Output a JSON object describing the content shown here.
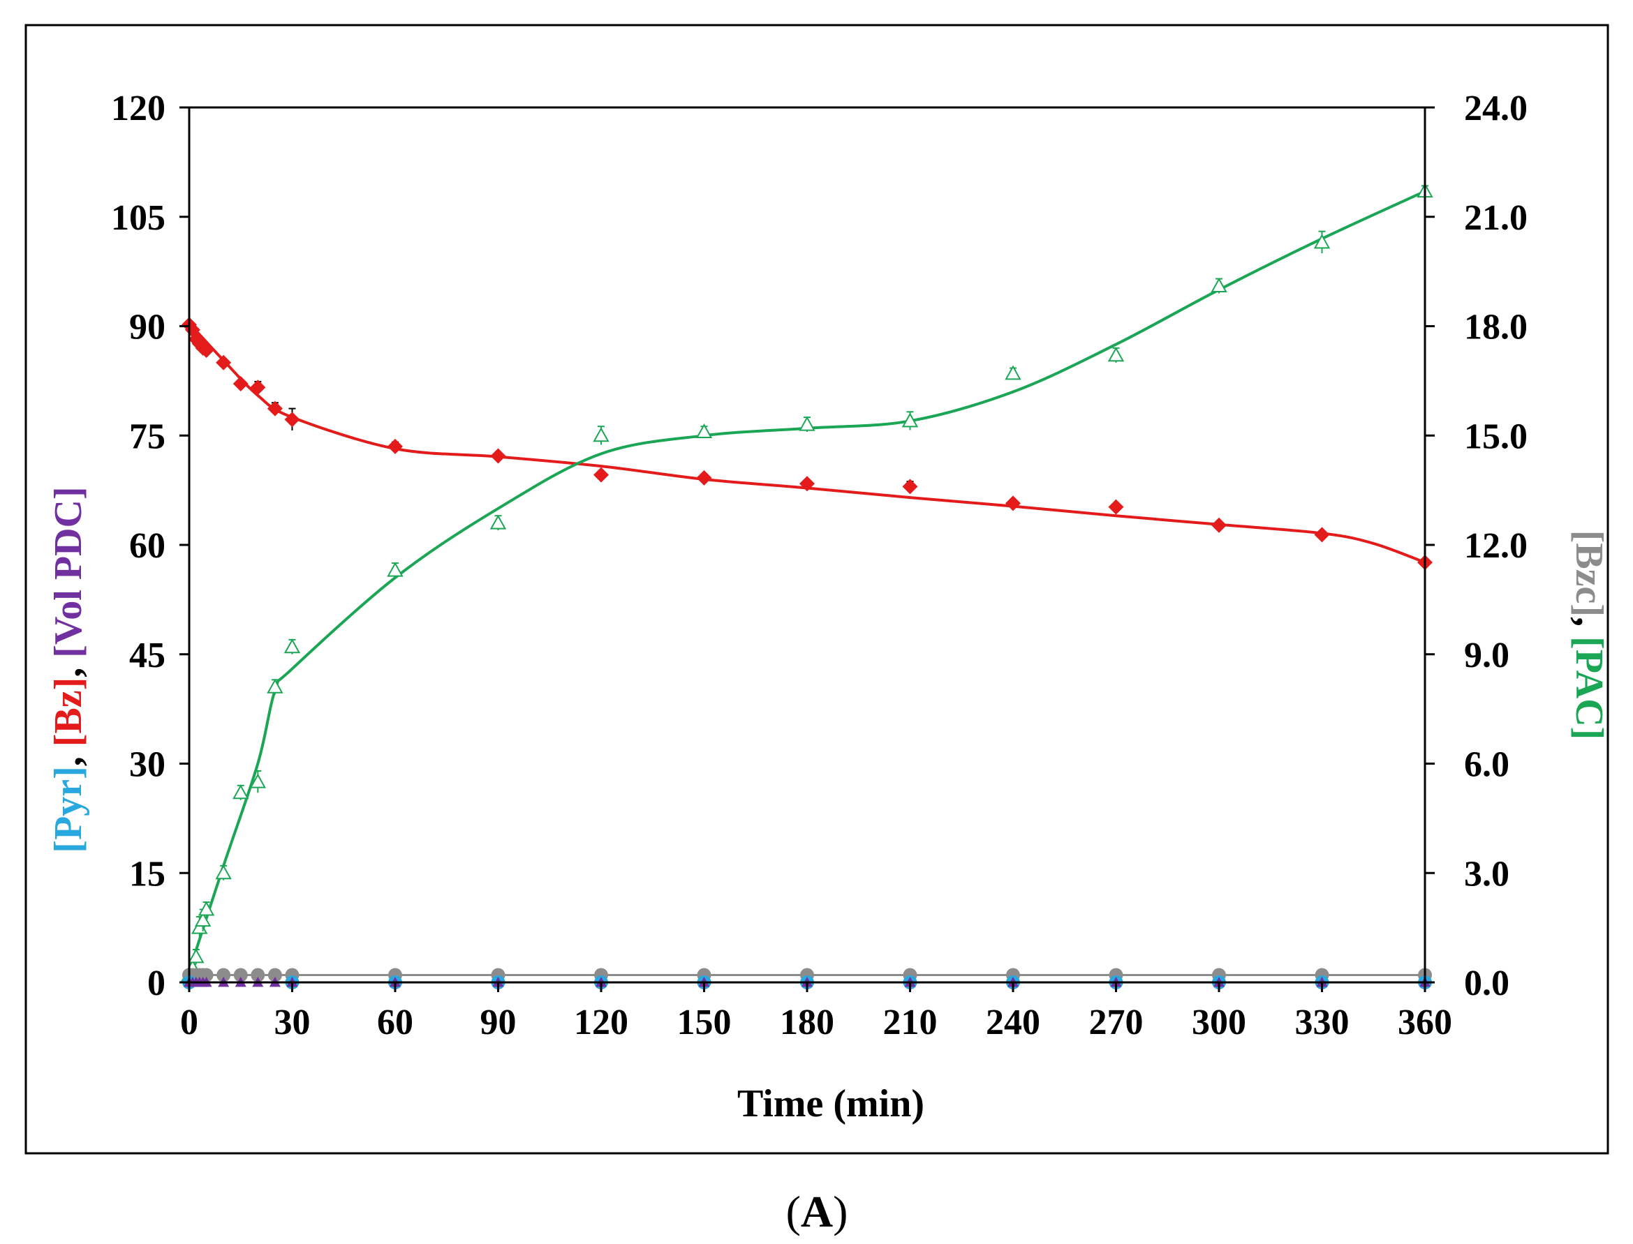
{
  "chart_data": {
    "type": "scatter",
    "title": "",
    "panel_label": "A",
    "xlabel": "Time (min)",
    "xlim": [
      0,
      360
    ],
    "xticks": [
      0,
      30,
      60,
      90,
      120,
      150,
      180,
      210,
      240,
      270,
      300,
      330,
      360
    ],
    "ylim_left": [
      0,
      120
    ],
    "yticks_left": [
      "0",
      "15",
      "30",
      "45",
      "60",
      "75",
      "90",
      "105",
      "120"
    ],
    "ylim_right": [
      0,
      24
    ],
    "yticks_right": [
      "0.0",
      "3.0",
      "6.0",
      "9.0",
      "12.0",
      "15.0",
      "18.0",
      "21.0",
      "24.0"
    ],
    "ylabel_left_parts": [
      {
        "text": "[Pyr]",
        "color": "#29a8e0"
      },
      {
        "text": ", ",
        "color": "#000000"
      },
      {
        "text": "[Bz]",
        "color": "#e31b1b"
      },
      {
        "text": ", ",
        "color": "#000000"
      },
      {
        "text": "[Vol PDC]",
        "color": "#7030a0"
      }
    ],
    "ylabel_right_parts": [
      {
        "text": "[Bzc]",
        "color": "#8c8c8c"
      },
      {
        "text": ", ",
        "color": "#000000"
      },
      {
        "text": "[PAC]",
        "color": "#1aa654"
      }
    ],
    "series": [
      {
        "name": "[Bz]",
        "axis": "left",
        "color": "#e31b1b",
        "marker": "diamond",
        "x": [
          0,
          1,
          2,
          3,
          4,
          5,
          10,
          15,
          20,
          25,
          30,
          60,
          90,
          120,
          150,
          180,
          210,
          240,
          270,
          300,
          330,
          360
        ],
        "y": [
          90.2,
          89.5,
          88.2,
          87.6,
          87.0,
          86.7,
          85.0,
          82.1,
          81.6,
          78.7,
          77.2,
          73.5,
          72.2,
          69.6,
          69.2,
          68.4,
          68.0,
          65.7,
          65.2,
          62.7,
          61.4,
          57.6
        ],
        "err": [
          0.4,
          0.4,
          0.5,
          0.5,
          0.4,
          0.4,
          0.4,
          0.5,
          0.8,
          0.8,
          1.5,
          0.6,
          0.5,
          0.5,
          0.5,
          0.5,
          0.7,
          0.5,
          0.5,
          0.4,
          0.5,
          0.4
        ],
        "fit_x": [
          0,
          10,
          20,
          30,
          60,
          90,
          120,
          150,
          180,
          210,
          240,
          270,
          300,
          330,
          345,
          360
        ],
        "fit_y": [
          90.4,
          85.3,
          80.5,
          77.5,
          73.2,
          72.1,
          70.8,
          69.0,
          67.8,
          66.5,
          65.3,
          64.0,
          62.8,
          61.6,
          60.2,
          57.6
        ]
      },
      {
        "name": "[PAC]",
        "axis": "right",
        "color": "#1aa654",
        "marker": "triangle-open",
        "x": [
          0,
          1,
          2,
          3,
          4,
          5,
          10,
          15,
          20,
          25,
          30,
          60,
          90,
          120,
          150,
          180,
          210,
          240,
          270,
          300,
          330,
          360
        ],
        "y": [
          0.2,
          0.4,
          0.7,
          1.5,
          1.7,
          2.0,
          3.0,
          5.2,
          5.5,
          8.1,
          9.2,
          11.3,
          12.6,
          15.0,
          15.1,
          15.3,
          15.4,
          16.7,
          17.2,
          19.1,
          20.3,
          21.7
        ],
        "err": [
          0.1,
          0.1,
          0.2,
          0.3,
          0.3,
          0.2,
          0.2,
          0.2,
          0.3,
          0.2,
          0.2,
          0.2,
          0.2,
          0.25,
          0.15,
          0.2,
          0.25,
          0.15,
          0.2,
          0.2,
          0.3,
          0.15
        ],
        "fit_x": [
          0,
          10,
          20,
          25,
          30,
          60,
          90,
          120,
          150,
          180,
          210,
          240,
          270,
          300,
          330,
          360
        ],
        "fit_y": [
          0.3,
          3.2,
          6.0,
          8.0,
          8.6,
          11.1,
          13.0,
          14.5,
          15.0,
          15.2,
          15.4,
          16.2,
          17.5,
          19.0,
          20.4,
          21.7
        ]
      },
      {
        "name": "[Bzc]",
        "axis": "right",
        "color": "#8c8c8c",
        "marker": "circle",
        "x": [
          0,
          1,
          2,
          3,
          4,
          5,
          10,
          15,
          20,
          25,
          30,
          60,
          90,
          120,
          150,
          180,
          210,
          240,
          270,
          300,
          330,
          360
        ],
        "y": [
          0.2,
          0.2,
          0.2,
          0.2,
          0.2,
          0.2,
          0.2,
          0.2,
          0.2,
          0.2,
          0.2,
          0.2,
          0.2,
          0.2,
          0.2,
          0.2,
          0.2,
          0.2,
          0.2,
          0.2,
          0.2,
          0.2
        ]
      },
      {
        "name": "[Pyr]",
        "axis": "left",
        "color": "#29a8e0",
        "marker": "circle",
        "x": [
          0,
          30,
          60,
          90,
          120,
          150,
          180,
          210,
          240,
          270,
          300,
          330,
          360
        ],
        "y": [
          0,
          0,
          0,
          0,
          0,
          0,
          0,
          0,
          0,
          0,
          0,
          0,
          0
        ]
      },
      {
        "name": "[Vol PDC]",
        "axis": "left",
        "color": "#7030a0",
        "marker": "triangle",
        "x": [
          0,
          1,
          2,
          3,
          4,
          5,
          10,
          15,
          20,
          25,
          30,
          60,
          90,
          120,
          150,
          180,
          210,
          240,
          270,
          300,
          330,
          360
        ],
        "y": [
          0,
          0,
          0,
          0,
          0,
          0,
          0,
          0,
          0,
          0,
          0,
          0,
          0,
          0,
          0,
          0,
          0,
          0,
          0,
          0,
          0,
          0
        ]
      }
    ]
  }
}
